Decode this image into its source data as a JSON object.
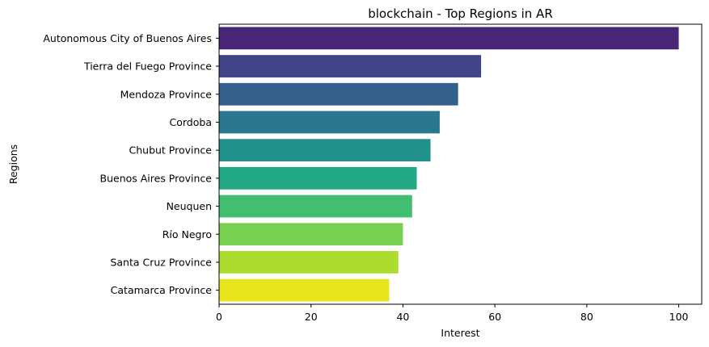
{
  "chart_data": {
    "type": "bar",
    "orientation": "horizontal",
    "title": "blockchain - Top Regions in AR",
    "xlabel": "Interest",
    "ylabel": "Regions",
    "xlim": [
      0,
      105
    ],
    "xticks": [
      0,
      20,
      40,
      60,
      80,
      100
    ],
    "grid": false,
    "categories": [
      "Autonomous City of Buenos Aires",
      "Tierra del Fuego Province",
      "Mendoza Province",
      "Cordoba",
      "Chubut Province",
      "Buenos Aires Province",
      "Neuquen",
      "Río Negro",
      "Santa Cruz Province",
      "Catamarca Province"
    ],
    "values": [
      100,
      57,
      52,
      48,
      46,
      43,
      42,
      40,
      39,
      37
    ],
    "colors": [
      "#482576",
      "#414487",
      "#35608d",
      "#2a788e",
      "#21918c",
      "#22a884",
      "#42be71",
      "#7ad151",
      "#addc30",
      "#e8e51a"
    ]
  }
}
